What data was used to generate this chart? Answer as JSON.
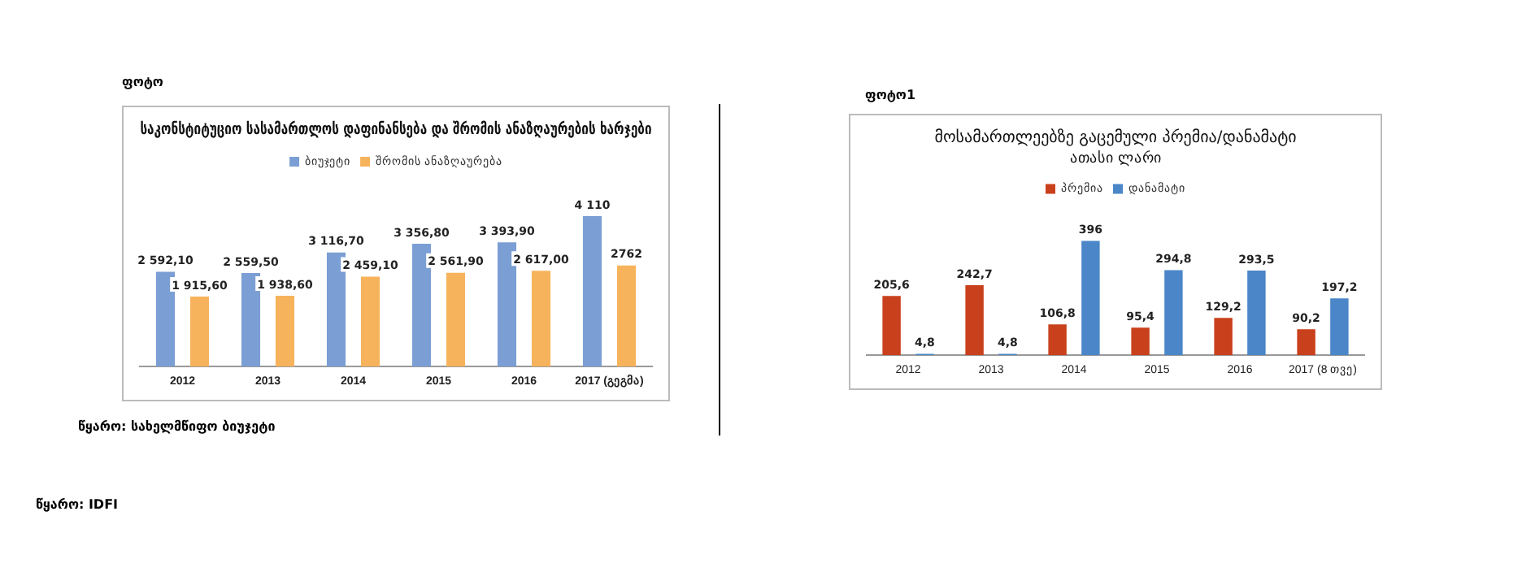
{
  "chart_data": [
    {
      "type": "bar",
      "title": "საკონსტიტუციო სასამართლოს დაფინანსება და შრომის ანაზღაურების ხარჯები",
      "categories": [
        "2012",
        "2013",
        "2014",
        "2015",
        "2016",
        "2017 (გეგმა)"
      ],
      "series": [
        {
          "name": "ბიუჯეტი",
          "color": "#7b9fd4",
          "values": [
            2592.1,
            2559.5,
            3116.7,
            3356.8,
            3393.9,
            4110
          ],
          "value_labels": [
            "2 592,10",
            "2 559,50",
            "3 116,70",
            "3 356,80",
            "3 393,90",
            "4 110"
          ]
        },
        {
          "name": "შრომის ანაზღაურება",
          "color": "#f7b35c",
          "values": [
            1915.6,
            1938.6,
            2459.1,
            2561.9,
            2617,
            2762
          ],
          "value_labels": [
            "1 915,60",
            "1 938,60",
            "2 459,10",
            "2 561,90",
            "2 617,00",
            "2762"
          ]
        }
      ],
      "legend": "top",
      "grid": false,
      "tick_labels": "x",
      "annotations": [
        "ფოტო",
        "წყარო: სახელმწიფო ბიუჯეტი",
        "წყარო: IDFI"
      ]
    },
    {
      "type": "bar",
      "title": "მოსამართლეებზე გაცემული პრემია/დანამატი",
      "subtitle": "ათასი ლარი",
      "categories": [
        "2012",
        "2013",
        "2014",
        "2015",
        "2016",
        "2017 (8 თვე)"
      ],
      "series": [
        {
          "name": "პრემია",
          "color": "#c9401c",
          "values": [
            205.6,
            242.7,
            106.8,
            95.4,
            129.2,
            90.2
          ],
          "value_labels": [
            "205,6",
            "242,7",
            "106,8",
            "95,4",
            "129,2",
            "90,2"
          ]
        },
        {
          "name": "დანამატი",
          "color": "#4a86c8",
          "values": [
            4.8,
            4.8,
            396,
            294.8,
            293.5,
            197.2
          ],
          "value_labels": [
            "4,8",
            "4,8",
            "396",
            "294,8",
            "293,5",
            "197,2"
          ]
        }
      ],
      "legend": "top",
      "grid": false,
      "tick_labels": "x",
      "annotations": [
        "ფოტო1"
      ]
    }
  ]
}
